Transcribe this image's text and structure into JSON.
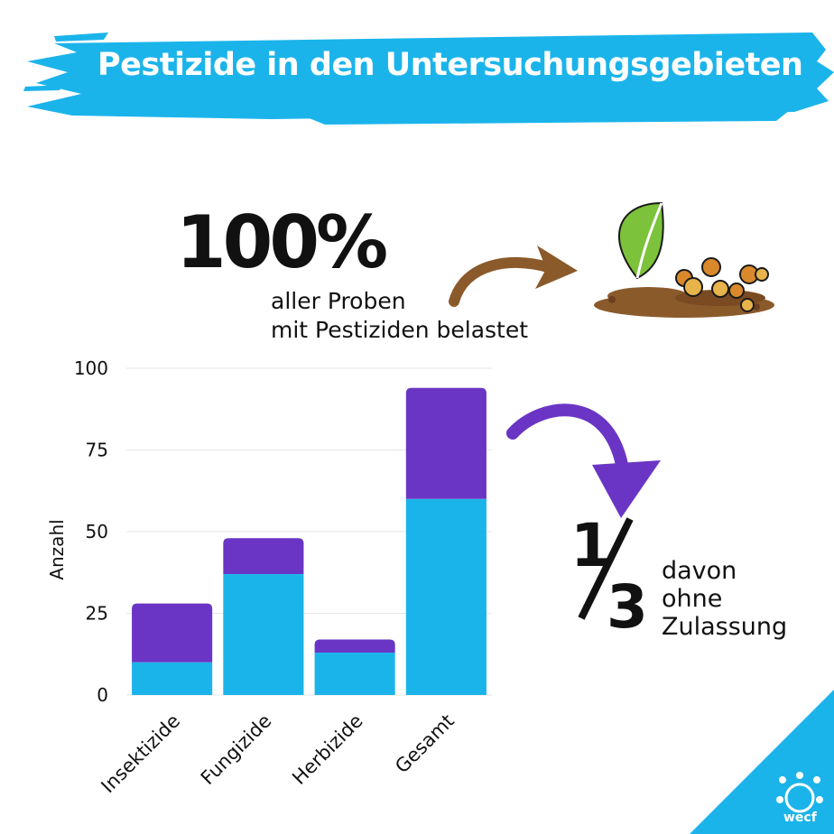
{
  "header": {
    "title": "Pestizide in den Untersuchungsgebieten"
  },
  "highlight": {
    "percent": "100%",
    "line1": "aller Proben",
    "line2": "mit Pestiziden belastet"
  },
  "fraction_note": {
    "numerator": "1",
    "denominator": "3",
    "line1": "davon",
    "line2": "ohne",
    "line3": "Zulassung"
  },
  "logo": {
    "text": "wecf"
  },
  "colors": {
    "banner": "#1bb4ea",
    "bar_bottom": "#1bb4ea",
    "bar_top": "#6a35c4",
    "brown_arrow": "#8b5a2b",
    "purple_arrow": "#6a35c4",
    "leaf": "#7cc23b"
  },
  "chart_data": {
    "type": "bar",
    "stacked": true,
    "categories": [
      "Insektizide",
      "Fungizide",
      "Herbizide",
      "Gesamt"
    ],
    "series": [
      {
        "values": [
          10,
          37,
          13,
          60
        ]
      },
      {
        "values": [
          18,
          11,
          4,
          34
        ]
      }
    ],
    "ylabel": "Anzahl",
    "ylim": [
      0,
      100
    ],
    "yticks": [
      0,
      25,
      50,
      75,
      100
    ],
    "grid": true
  }
}
